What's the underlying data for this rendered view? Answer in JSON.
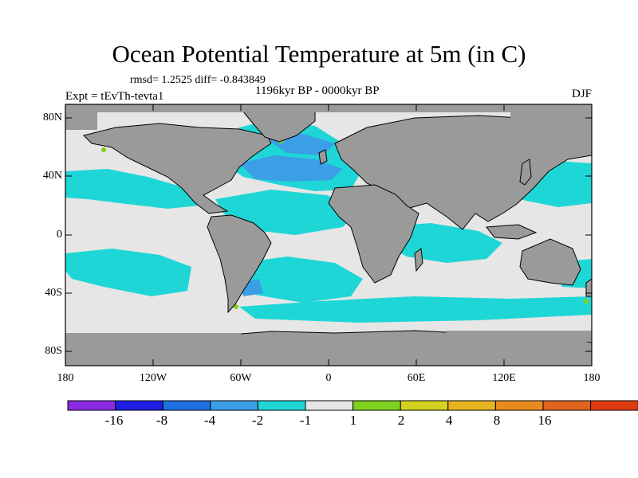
{
  "title": "Ocean Potential Temperature at 5m (in C)",
  "stats": "rmsd= 1.2525  diff= -0.843849",
  "period": "1196kyr BP - 0000kyr BP",
  "experiment": "Expt = tEvTh-tevta1",
  "season": "DJF",
  "map": {
    "lon_range": [
      -180,
      180
    ],
    "lat_range": [
      -90,
      90
    ],
    "land_color": "#9a9a9a",
    "neutral_ocean_color": "#e6e6e6",
    "y_ticks": [
      "80N",
      "40N",
      "0",
      "40S",
      "80S"
    ],
    "x_ticks": [
      "180",
      "120W",
      "60W",
      "0",
      "60E",
      "120E",
      "180"
    ]
  },
  "colorbar": {
    "colors": [
      "#8a2be2",
      "#1e1ee0",
      "#1e6fe0",
      "#3a9fe6",
      "#1fd6d6",
      "#e6e6e6",
      "#7fd21f",
      "#d2d21f",
      "#e6b41f",
      "#e68c1f",
      "#e0641e",
      "#e03c14"
    ],
    "labels": [
      "-16",
      "-8",
      "-4",
      "-2",
      "-1",
      "1",
      "2",
      "4",
      "8",
      "16"
    ]
  }
}
